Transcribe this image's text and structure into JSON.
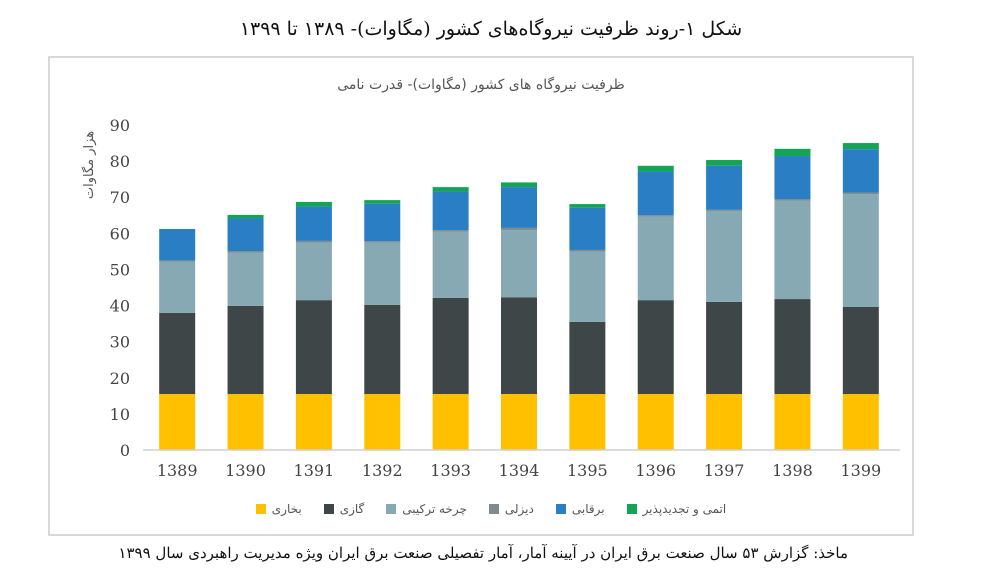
{
  "figure_title": "شکل ۱-روند  ظرفیت نیروگاه‌های کشور (مگاوات)- ۱۳۸۹ تا ۱۳۹۹",
  "caption": "ماخذ: گزارش ۵۳ سال صنعت برق ایران در آیینه آمار، آمار تفصیلی صنعت برق ایران ویژه مدیریت راهبردی سال ۱۳۹۹",
  "chart_data": {
    "type": "bar",
    "stacked": true,
    "title": "ظرفیت نیروگاه های کشور (مگاوات)- قدرت نامی",
    "xlabel": "",
    "ylabel": "هزار مگاوات",
    "ylim": [
      0,
      90
    ],
    "yticks": [
      0,
      10,
      20,
      30,
      40,
      50,
      60,
      70,
      80,
      90
    ],
    "grid": false,
    "legend": "bottom",
    "categories": [
      "1389",
      "1390",
      "1391",
      "1392",
      "1393",
      "1394",
      "1395",
      "1396",
      "1397",
      "1398",
      "1399"
    ],
    "series": [
      {
        "name": "بخاری",
        "color": "#FFC000",
        "values": [
          15.5,
          15.5,
          15.5,
          15.5,
          15.5,
          15.5,
          15.5,
          15.5,
          15.5,
          15.5,
          15.5
        ]
      },
      {
        "name": "گازی",
        "color": "#3F4648",
        "values": [
          22.5,
          24.4,
          26.0,
          24.7,
          26.6,
          26.8,
          20.0,
          26.0,
          25.5,
          26.3,
          24.1
        ]
      },
      {
        "name": "چرخه ترکیبی",
        "color": "#86A9B3",
        "values": [
          14.2,
          14.8,
          15.9,
          17.2,
          18.4,
          18.6,
          19.4,
          23.1,
          25.2,
          27.3,
          31.2
        ]
      },
      {
        "name": "دیزلی",
        "color": "#7F8C8F",
        "values": [
          0.3,
          0.4,
          0.5,
          0.4,
          0.4,
          0.6,
          0.5,
          0.4,
          0.3,
          0.4,
          0.5
        ]
      },
      {
        "name": "برقابی",
        "color": "#2A7FC4",
        "values": [
          8.7,
          9.0,
          9.5,
          10.4,
          10.7,
          11.3,
          11.7,
          12.1,
          12.2,
          11.9,
          12.0
        ]
      },
      {
        "name": "اتمی و تجدیدپذیر",
        "color": "#13A456",
        "values": [
          0,
          1.0,
          1.3,
          1.0,
          1.2,
          1.3,
          1.0,
          1.6,
          1.6,
          2.0,
          1.7
        ]
      }
    ]
  }
}
